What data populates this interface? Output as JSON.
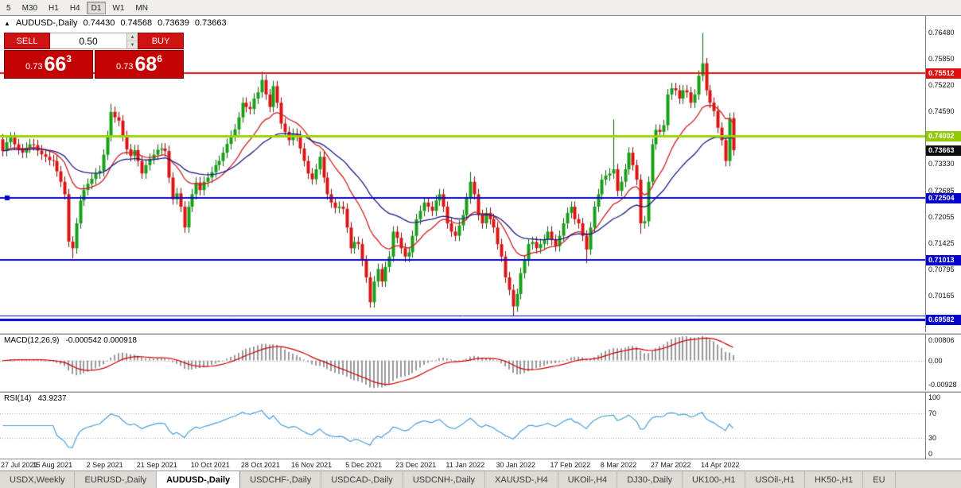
{
  "toolbar": {
    "timeframes": [
      {
        "label": "5",
        "selected": false
      },
      {
        "label": "M30",
        "selected": false
      },
      {
        "label": "H1",
        "selected": false
      },
      {
        "label": "H4",
        "selected": false
      },
      {
        "label": "D1",
        "selected": true
      },
      {
        "label": "W1",
        "selected": false
      },
      {
        "label": "MN",
        "selected": false
      }
    ]
  },
  "header": {
    "collapse_icon": "▲",
    "symbol": "AUDUSD-,Daily",
    "open": "0.74430",
    "high": "0.74568",
    "low": "0.73639",
    "close": "0.73663"
  },
  "trade_panel": {
    "sell_label": "SELL",
    "buy_label": "BUY",
    "volume": "0.50",
    "spin_up_icon": "▲",
    "spin_down_icon": "▼",
    "sell_price": {
      "big": "0.73",
      "large": "66",
      "sup": "3"
    },
    "buy_price": {
      "big": "0.73",
      "large": "68",
      "sup": "6"
    }
  },
  "macd": {
    "name": "MACD(12,26,9)",
    "values": "-0.000542 0.000918",
    "axis_top": "0.00806",
    "axis_zero": "0.00",
    "axis_bottom": "-0.00928",
    "range": {
      "min": -0.00928,
      "max": 0.00806
    },
    "params": {
      "fast": 12,
      "slow": 26,
      "signal": 9
    }
  },
  "rsi": {
    "name": "RSI(14)",
    "value": "43.9237",
    "period": 14,
    "axis": [
      "100",
      "70",
      "30",
      "0"
    ],
    "levels": [
      70,
      30
    ],
    "range": {
      "min": 0,
      "max": 100
    }
  },
  "tabs": {
    "selected_index": 2,
    "items": [
      {
        "label": "USDX,Weekly"
      },
      {
        "label": "EURUSD-,Daily"
      },
      {
        "label": "AUDUSD-,Daily"
      },
      {
        "label": "USDCHF-,Daily"
      },
      {
        "label": "USDCAD-,Daily"
      },
      {
        "label": "USDCNH-,Daily"
      },
      {
        "label": "XAUUSD-,H4"
      },
      {
        "label": "UKOil-,H4"
      },
      {
        "label": "DJ30-,Daily"
      },
      {
        "label": "UK100-,H1"
      },
      {
        "label": "USOil-,H1"
      },
      {
        "label": "HK50-,H1"
      },
      {
        "label": "EU"
      }
    ]
  },
  "colors": {
    "up": "#17a017",
    "up_edge": "#0a5c0a",
    "down": "#dc1414",
    "down_edge": "#7c0606",
    "ma_fast": "#cc2020",
    "ma_slow": "#1a1a86",
    "macd_hist": "#9a9a9a",
    "macd_signal": "#cc0000",
    "rsi_line": "#4a9edc",
    "level_dots": "#b0b0b0"
  },
  "chart_data": {
    "type": "candlestick",
    "title": "AUDUSD-,Daily",
    "first_open": 0.7392,
    "default_wick": 0.0013,
    "y_min": 0.6928,
    "y_max": 0.7689,
    "y_ticks": [
      "0.76480",
      "0.75850",
      "0.75220",
      "0.74590",
      "0.73960",
      "0.73330",
      "0.72685",
      "0.72055",
      "0.71425",
      "0.70795",
      "0.70165",
      "0.69535"
    ],
    "closes": [
      0.7364,
      0.7385,
      0.7396,
      0.738,
      0.7368,
      0.736,
      0.7372,
      0.738,
      0.7378,
      0.7365,
      0.7356,
      0.735,
      0.7342,
      0.734,
      0.7315,
      0.729,
      0.726,
      0.7146,
      0.713,
      0.719,
      0.7245,
      0.727,
      0.7285,
      0.7297,
      0.731,
      0.7316,
      0.7355,
      0.74,
      0.7458,
      0.7445,
      0.7437,
      0.74,
      0.7368,
      0.7352,
      0.7366,
      0.734,
      0.731,
      0.733,
      0.7345,
      0.7355,
      0.7367,
      0.737,
      0.7364,
      0.73,
      0.7248,
      0.7262,
      0.723,
      0.718,
      0.723,
      0.726,
      0.7288,
      0.727,
      0.729,
      0.73,
      0.7313,
      0.733,
      0.734,
      0.736,
      0.7381,
      0.74,
      0.7416,
      0.7445,
      0.748,
      0.747,
      0.7465,
      0.749,
      0.7505,
      0.7535,
      0.75,
      0.747,
      0.752,
      0.748,
      0.743,
      0.741,
      0.739,
      0.7405,
      0.74,
      0.737,
      0.734,
      0.731,
      0.7296,
      0.732,
      0.735,
      0.73,
      0.726,
      0.724,
      0.7227,
      0.723,
      0.7225,
      0.718,
      0.713,
      0.7145,
      0.714,
      0.71,
      0.706,
      0.7,
      0.705,
      0.708,
      0.705,
      0.7085,
      0.711,
      0.717,
      0.7155,
      0.713,
      0.711,
      0.712,
      0.716,
      0.72,
      0.722,
      0.724,
      0.723,
      0.722,
      0.7245,
      0.726,
      0.723,
      0.719,
      0.717,
      0.716,
      0.7185,
      0.721,
      0.725,
      0.729,
      0.726,
      0.721,
      0.719,
      0.7215,
      0.72,
      0.718,
      0.714,
      0.711,
      0.706,
      0.703,
      0.699,
      0.702,
      0.707,
      0.71,
      0.714,
      0.7145,
      0.713,
      0.714,
      0.715,
      0.717,
      0.715,
      0.7135,
      0.716,
      0.719,
      0.7215,
      0.723,
      0.72,
      0.719,
      0.716,
      0.7127,
      0.718,
      0.723,
      0.726,
      0.7295,
      0.7305,
      0.731,
      0.732,
      0.7268,
      0.729,
      0.732,
      0.736,
      0.733,
      0.7295,
      0.719,
      0.7195,
      0.729,
      0.738,
      0.7415,
      0.741,
      0.7426,
      0.75,
      0.7515,
      0.751,
      0.749,
      0.751,
      0.7505,
      0.748,
      0.75,
      0.7545,
      0.7575,
      0.751,
      0.748,
      0.746,
      0.742,
      0.739,
      0.734,
      0.7443,
      0.7366
    ],
    "spikes": [
      {
        "i": 18,
        "low": 0.7106
      },
      {
        "i": 28,
        "high": 0.7478
      },
      {
        "i": 47,
        "low": 0.717
      },
      {
        "i": 67,
        "high": 0.7555
      },
      {
        "i": 95,
        "low": 0.6993
      },
      {
        "i": 121,
        "high": 0.7314
      },
      {
        "i": 132,
        "low": 0.6968
      },
      {
        "i": 151,
        "low": 0.7094
      },
      {
        "i": 158,
        "high": 0.744
      },
      {
        "i": 165,
        "low": 0.7165
      },
      {
        "i": 181,
        "high": 0.7648
      },
      {
        "i": 189,
        "high": 0.74568,
        "low": 0.73639
      }
    ],
    "moving_averages": [
      {
        "period": 15,
        "color": "#cc2020"
      },
      {
        "period": 34,
        "color": "#1a1a86"
      }
    ],
    "hlines": [
      {
        "price": 0.75512,
        "color": "#e01010",
        "width": 2
      },
      {
        "price": 0.74002,
        "color": "#9bd400",
        "width": 3
      },
      {
        "price": 0.72504,
        "color": "#0202cc",
        "width": 2,
        "handle": true
      },
      {
        "price": 0.71013,
        "color": "#0202cc",
        "width": 2
      },
      {
        "price": 0.6969,
        "color": "#0202cc",
        "width": 1
      },
      {
        "price": 0.69582,
        "color": "#0202cc",
        "width": 3
      }
    ],
    "price_badges": [
      {
        "text": "0.75512",
        "price": 0.75512,
        "bg": "#e01010",
        "fg": "#ffffff"
      },
      {
        "text": "0.74002",
        "price": 0.74002,
        "bg": "#93c900",
        "fg": "#ffffff"
      },
      {
        "text": "0.73663",
        "price": 0.73663,
        "bg": "#0d0d0d",
        "fg": "#ffffff"
      },
      {
        "text": "0.72504",
        "price": 0.72504,
        "bg": "#0202cc",
        "fg": "#ffffff"
      },
      {
        "text": "0.71013",
        "price": 0.71013,
        "bg": "#0202cc",
        "fg": "#ffffff"
      },
      {
        "text": "0.69582",
        "price": 0.69582,
        "bg": "#0202cc",
        "fg": "#ffffff"
      }
    ],
    "x_labels": [
      {
        "text": "27 Jul 2021",
        "i": 0
      },
      {
        "text": "15 Aug 2021",
        "i": 13
      },
      {
        "text": "2 Sep 2021",
        "i": 27
      },
      {
        "text": "21 Sep 2021",
        "i": 40
      },
      {
        "text": "10 Oct 2021",
        "i": 54
      },
      {
        "text": "28 Oct 2021",
        "i": 67
      },
      {
        "text": "16 Nov 2021",
        "i": 80
      },
      {
        "text": "5 Dec 2021",
        "i": 94
      },
      {
        "text": "23 Dec 2021",
        "i": 107
      },
      {
        "text": "11 Jan 2022",
        "i": 120
      },
      {
        "text": "30 Jan 2022",
        "i": 133
      },
      {
        "text": "17 Feb 2022",
        "i": 147
      },
      {
        "text": "8 Mar 2022",
        "i": 160
      },
      {
        "text": "27 Mar 2022",
        "i": 173
      },
      {
        "text": "14 Apr 2022",
        "i": 186
      }
    ]
  }
}
